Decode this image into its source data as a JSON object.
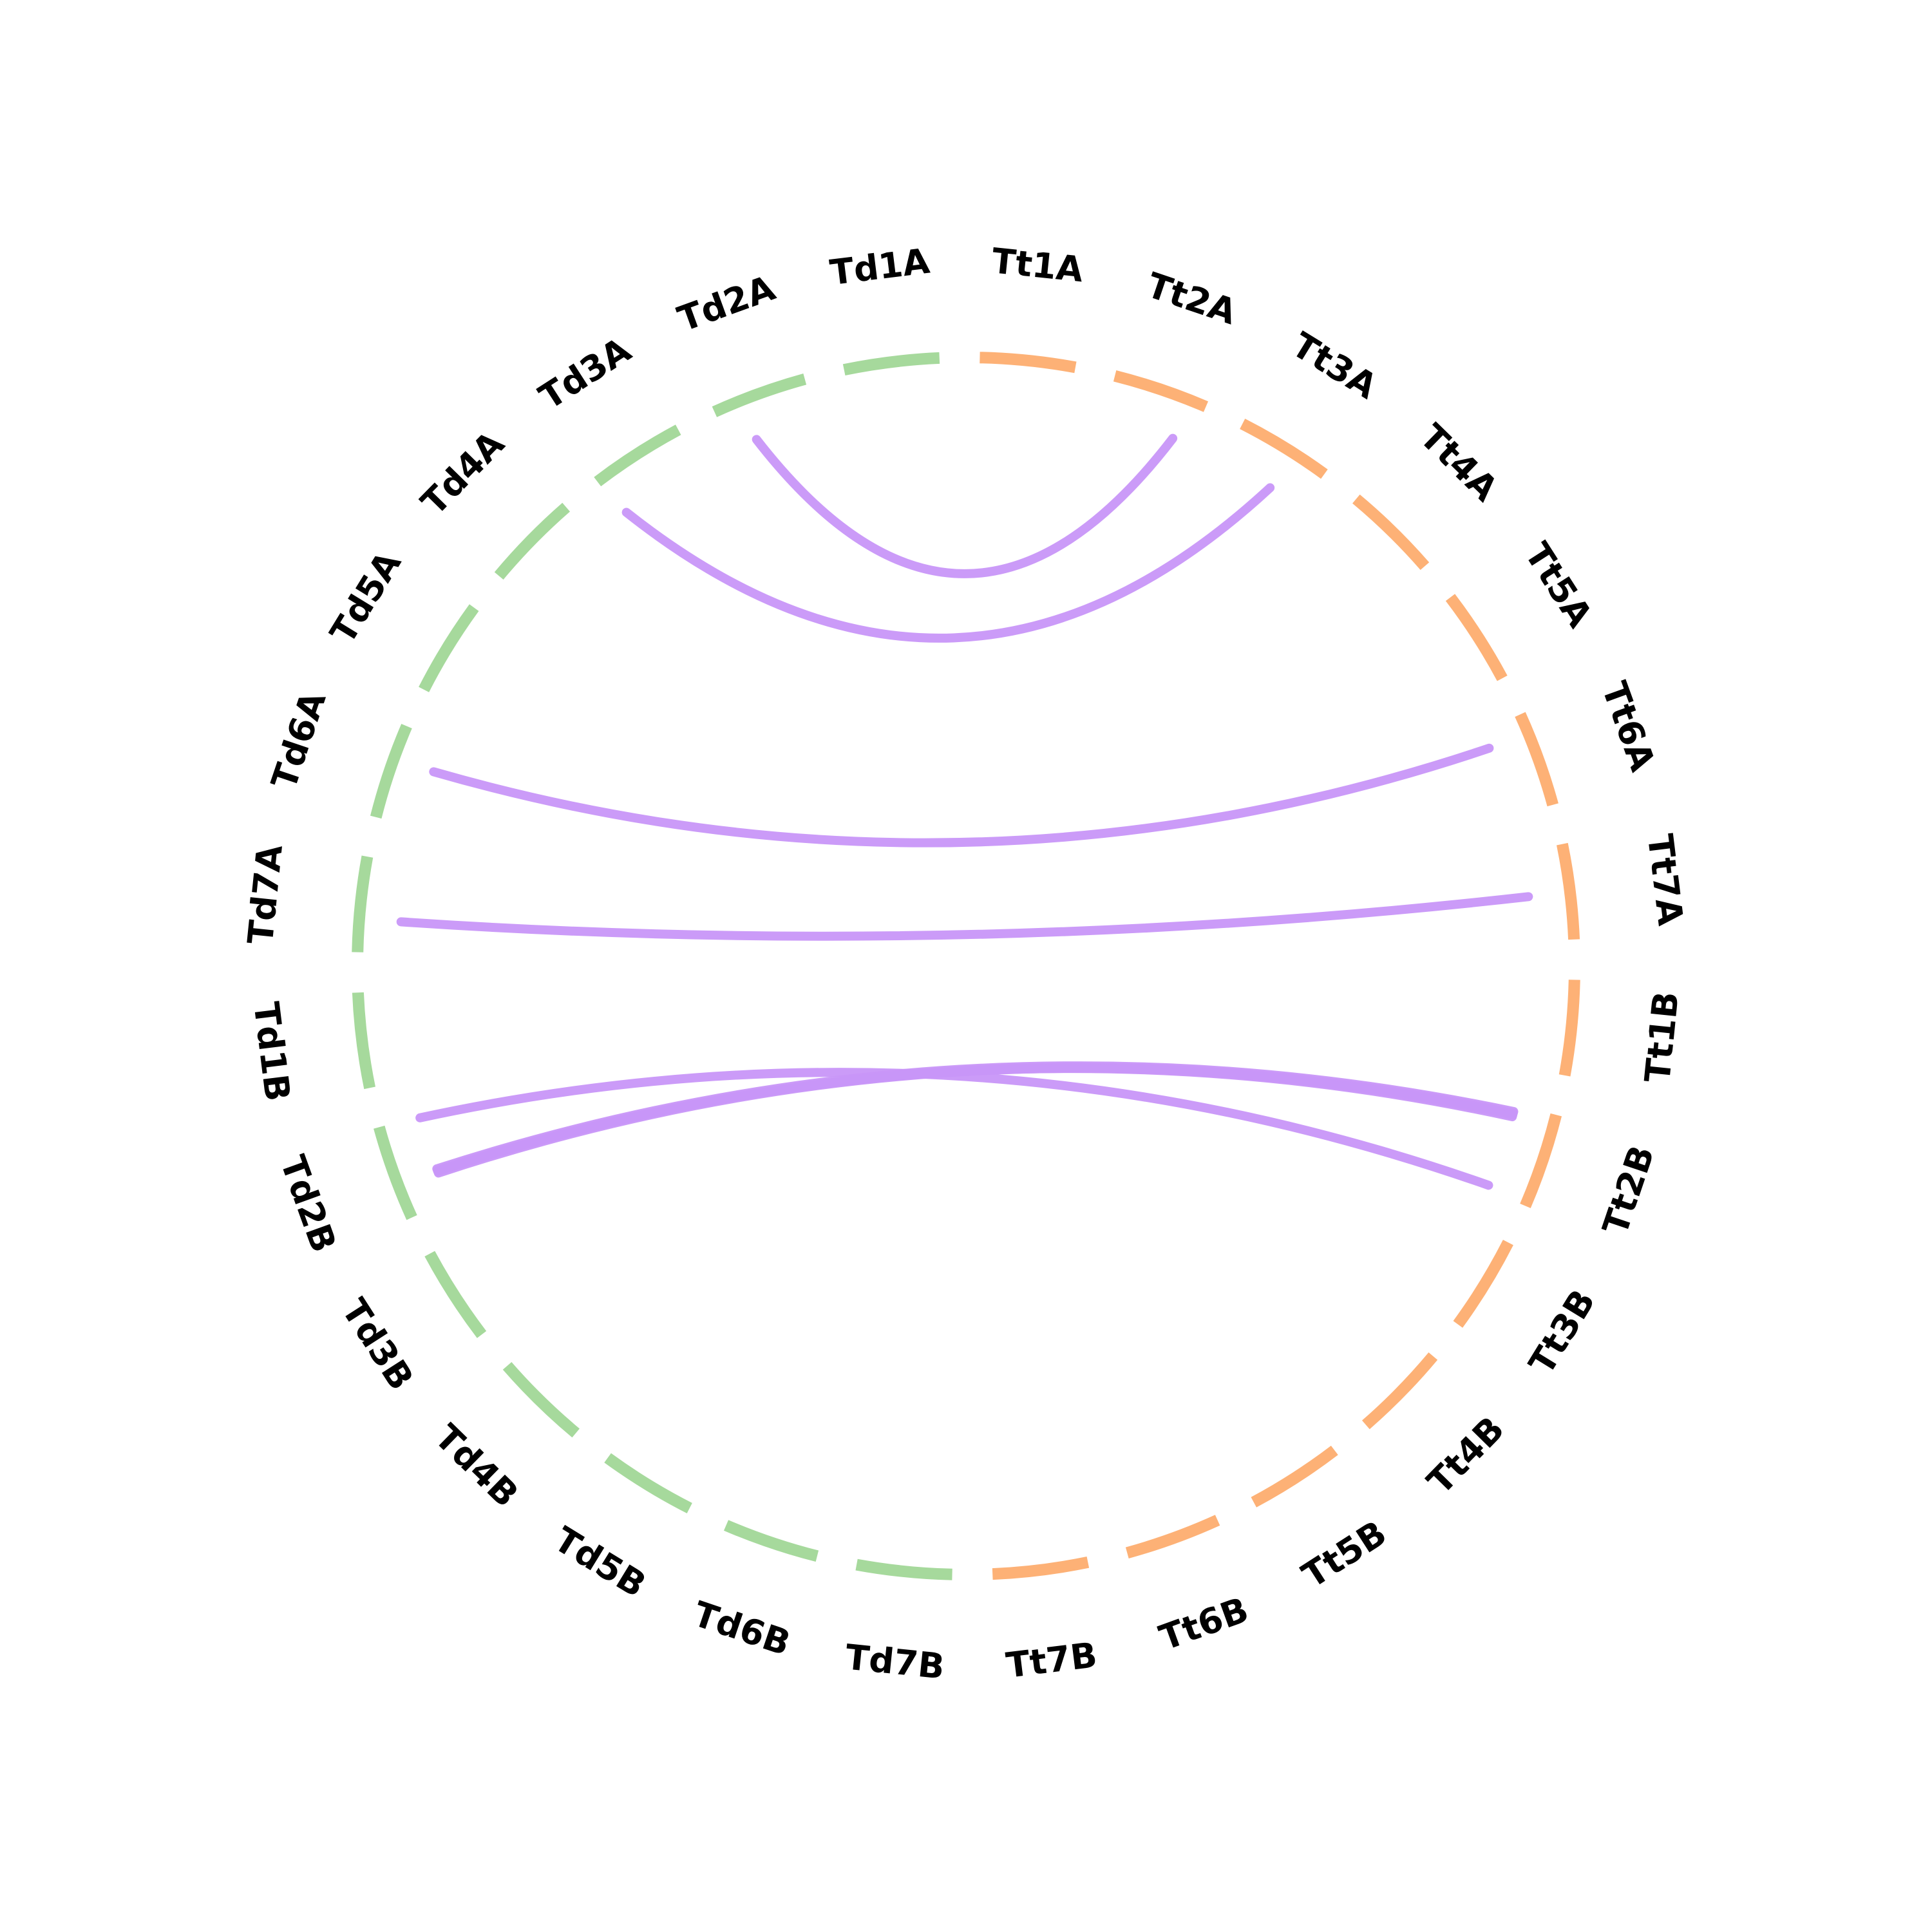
{
  "diagram": {
    "colors": {
      "group_td": "#a6d99c",
      "group_tt": "#fdb176",
      "link": "#c896f8",
      "background": "#ffffff",
      "label": "#000000"
    },
    "chromosomes": [
      {
        "label": "Tt1A",
        "group": "tt"
      },
      {
        "label": "Tt2A",
        "group": "tt"
      },
      {
        "label": "Tt3A",
        "group": "tt"
      },
      {
        "label": "Tt4A",
        "group": "tt"
      },
      {
        "label": "Tt5A",
        "group": "tt"
      },
      {
        "label": "Tt6A",
        "group": "tt"
      },
      {
        "label": "Tt7A",
        "group": "tt"
      },
      {
        "label": "Tt1B",
        "group": "tt"
      },
      {
        "label": "Tt2B",
        "group": "tt"
      },
      {
        "label": "Tt3B",
        "group": "tt"
      },
      {
        "label": "Tt4B",
        "group": "tt"
      },
      {
        "label": "Tt5B",
        "group": "tt"
      },
      {
        "label": "Tt6B",
        "group": "tt"
      },
      {
        "label": "Tt7B",
        "group": "tt"
      },
      {
        "label": "Td7B",
        "group": "td"
      },
      {
        "label": "Td6B",
        "group": "td"
      },
      {
        "label": "Td5B",
        "group": "td"
      },
      {
        "label": "Td4B",
        "group": "td"
      },
      {
        "label": "Td3B",
        "group": "td"
      },
      {
        "label": "Td2B",
        "group": "td"
      },
      {
        "label": "Td1B",
        "group": "td"
      },
      {
        "label": "Td7A",
        "group": "td"
      },
      {
        "label": "Td6A",
        "group": "td"
      },
      {
        "label": "Td5A",
        "group": "td"
      },
      {
        "label": "Td4A",
        "group": "td"
      },
      {
        "label": "Td3A",
        "group": "td"
      },
      {
        "label": "Td2A",
        "group": "td"
      },
      {
        "label": "Td1A",
        "group": "td"
      }
    ],
    "links": [
      {
        "from": "Td2A",
        "from_pos": 0.3,
        "to": "Tt2A",
        "to_pos": 0.8
      },
      {
        "from": "Td3A",
        "from_pos": 0.05,
        "to": "Tt3A",
        "to_pos": 0.6
      },
      {
        "from": "Td6A",
        "from_pos": 0.65,
        "to": "Tt6A",
        "to_pos": 0.2
      },
      {
        "from": "Td7A",
        "from_pos": 0.35,
        "to": "Tt7A",
        "to_pos": 0.5
      },
      {
        "from": "Td2B",
        "from_pos": 0.98,
        "to": "Tt2B",
        "to_pos": 0.95
      },
      {
        "from": "Td2B",
        "from_pos": 0.35,
        "to": "Tt2B",
        "to_pos": 0.1
      },
      {
        "from": "Td2B",
        "from_pos": 0.38,
        "to": "Tt2B",
        "to_pos": 0.08
      },
      {
        "from": "Td2B",
        "from_pos": 0.33,
        "to": "Tt2B",
        "to_pos": 0.12
      },
      {
        "from": "Td2B",
        "from_pos": 0.36,
        "to": "Tt2B",
        "to_pos": 0.14
      }
    ]
  }
}
